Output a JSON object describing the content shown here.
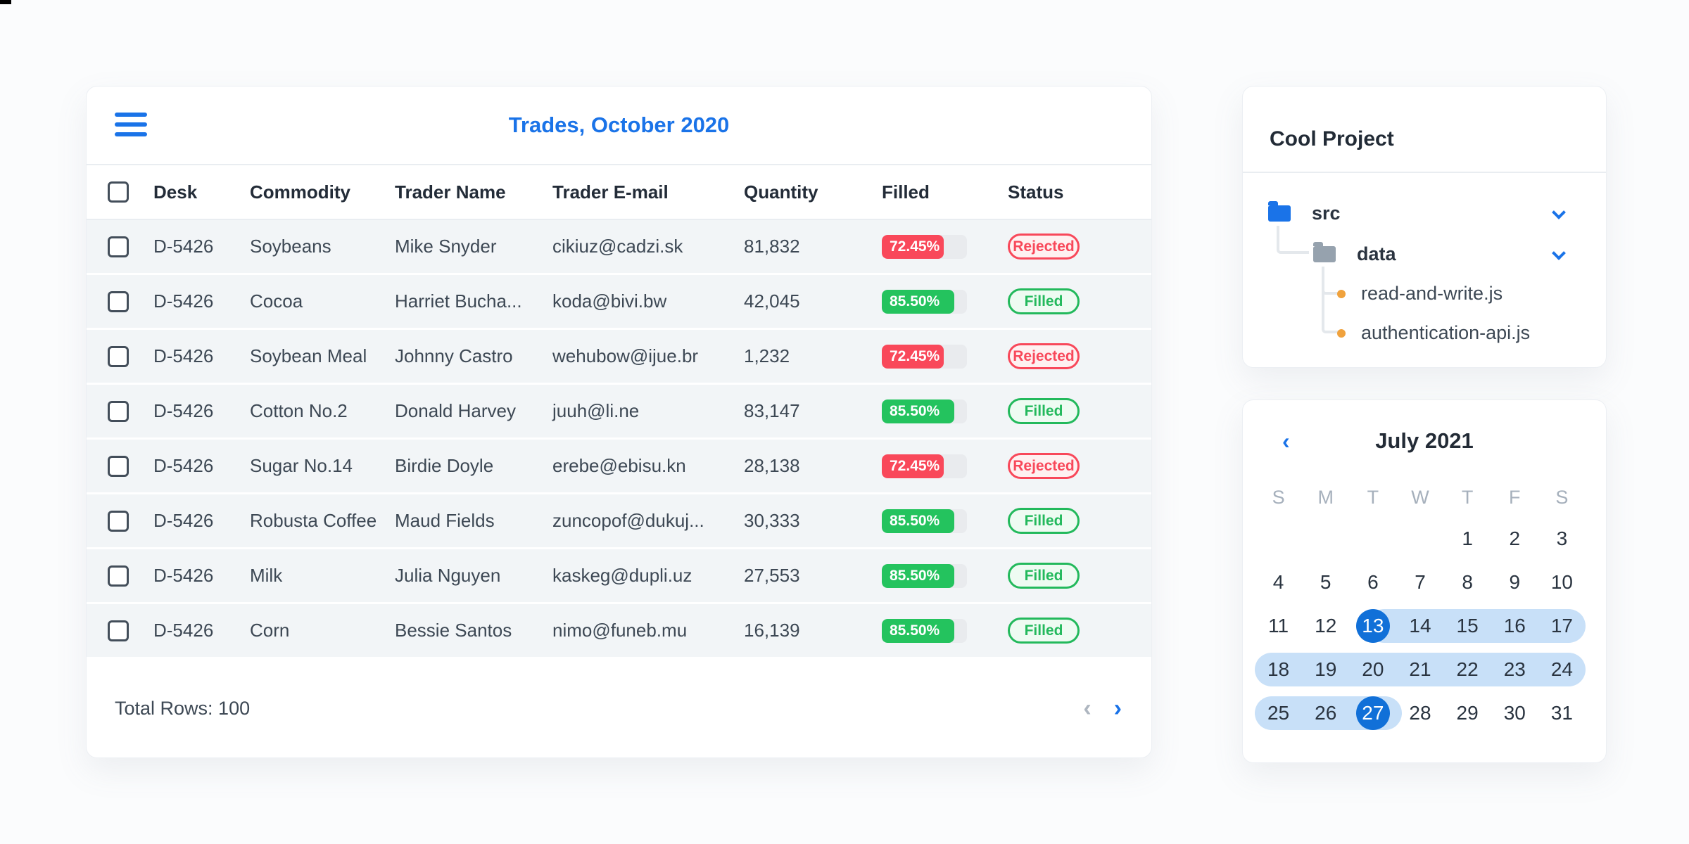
{
  "colors": {
    "accent_blue": "#1a73e8",
    "progress_red": "#f9485a",
    "progress_green": "#24c35e",
    "badge_rejected": "#f8485a",
    "badge_filled": "#23b95c",
    "calendar_selected": "#1170d8",
    "calendar_band": "#c8e0f8"
  },
  "table_card": {
    "title": "Trades, October 2020",
    "columns": [
      "Desk",
      "Commodity",
      "Trader Name",
      "Trader E-mail",
      "Quantity",
      "Filled",
      "Status"
    ],
    "rows": [
      {
        "desk": "D-5426",
        "commodity": "Soybeans",
        "trader": "Mike Snyder",
        "email": "cikiuz@cadzi.sk",
        "quantity": "81,832",
        "filled_pct": "72.45%",
        "filled_value": 72.45,
        "status": "Rejected"
      },
      {
        "desk": "D-5426",
        "commodity": "Cocoa",
        "trader": "Harriet Bucha...",
        "email": "koda@bivi.bw",
        "quantity": "42,045",
        "filled_pct": "85.50%",
        "filled_value": 85.5,
        "status": "Filled"
      },
      {
        "desk": "D-5426",
        "commodity": "Soybean Meal",
        "trader": "Johnny Castro",
        "email": "wehubow@ijue.br",
        "quantity": "1,232",
        "filled_pct": "72.45%",
        "filled_value": 72.45,
        "status": "Rejected"
      },
      {
        "desk": "D-5426",
        "commodity": "Cotton No.2",
        "trader": "Donald Harvey",
        "email": "juuh@li.ne",
        "quantity": "83,147",
        "filled_pct": "85.50%",
        "filled_value": 85.5,
        "status": "Filled"
      },
      {
        "desk": "D-5426",
        "commodity": "Sugar No.14",
        "trader": "Birdie Doyle",
        "email": "erebe@ebisu.kn",
        "quantity": "28,138",
        "filled_pct": "72.45%",
        "filled_value": 72.45,
        "status": "Rejected"
      },
      {
        "desk": "D-5426",
        "commodity": "Robusta Coffee",
        "trader": "Maud Fields",
        "email": "zuncopof@dukuj...",
        "quantity": "30,333",
        "filled_pct": "85.50%",
        "filled_value": 85.5,
        "status": "Filled"
      },
      {
        "desk": "D-5426",
        "commodity": "Milk",
        "trader": "Julia Nguyen",
        "email": "kaskeg@dupli.uz",
        "quantity": "27,553",
        "filled_pct": "85.50%",
        "filled_value": 85.5,
        "status": "Filled"
      },
      {
        "desk": "D-5426",
        "commodity": "Corn",
        "trader": "Bessie Santos",
        "email": "nimo@funeb.mu",
        "quantity": "16,139",
        "filled_pct": "85.50%",
        "filled_value": 85.5,
        "status": "Filled"
      }
    ],
    "footer": {
      "total_label": "Total Rows: 100",
      "prev_icon": "‹",
      "next_icon": "›"
    }
  },
  "project_card": {
    "title": "Cool Project",
    "tree": [
      {
        "label": "src"
      },
      {
        "label": "data"
      },
      {
        "label": "read-and-write.js"
      },
      {
        "label": "authentication-api.js"
      }
    ]
  },
  "calendar_card": {
    "prev_icon": "‹",
    "title": "July 2021",
    "weekdays": [
      "S",
      "M",
      "T",
      "W",
      "T",
      "F",
      "S"
    ],
    "weeks": [
      [
        "",
        "",
        "",
        "",
        "1",
        "2",
        "3"
      ],
      [
        "4",
        "5",
        "6",
        "7",
        "8",
        "9",
        "10"
      ],
      [
        "11",
        "12",
        "13",
        "14",
        "15",
        "16",
        "17"
      ],
      [
        "18",
        "19",
        "20",
        "21",
        "22",
        "23",
        "24"
      ],
      [
        "25",
        "26",
        "27",
        "28",
        "29",
        "30",
        "31"
      ]
    ],
    "range_start": "13",
    "range_end": "27"
  }
}
